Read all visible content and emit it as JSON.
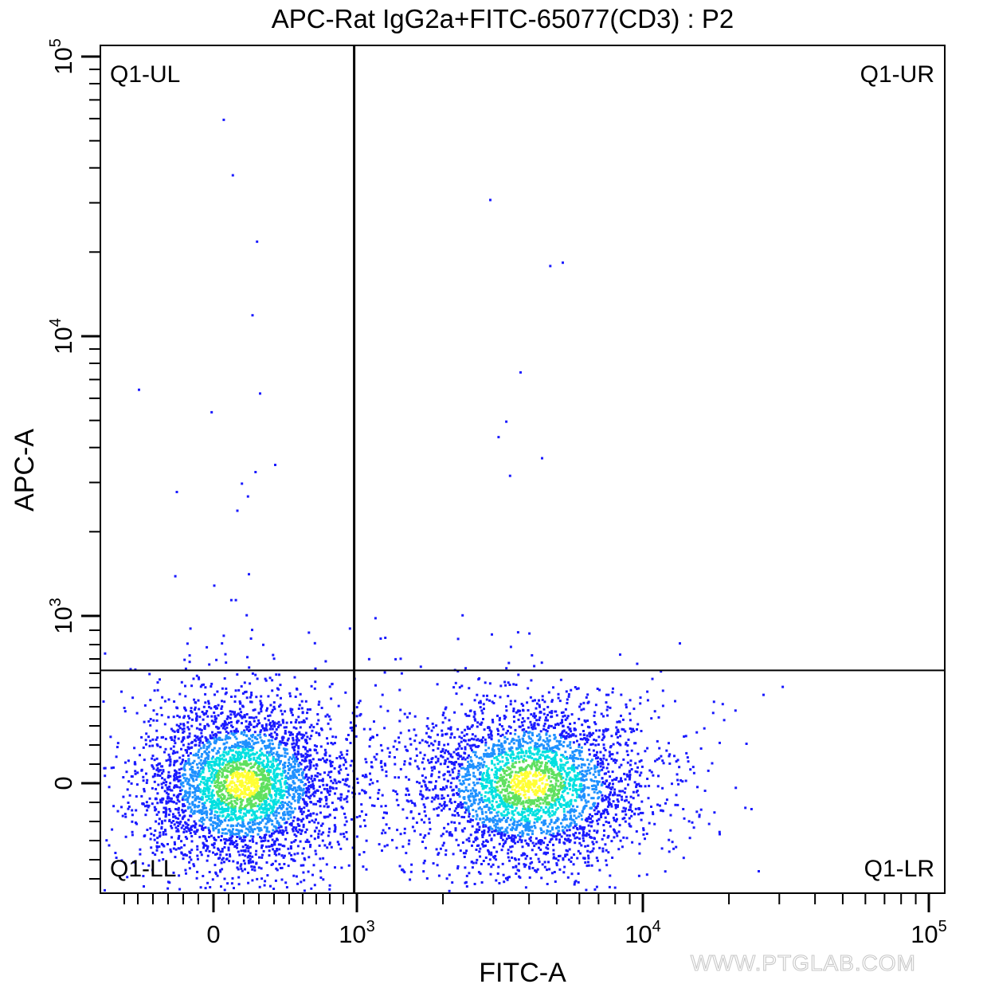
{
  "chart_data": {
    "type": "scatter",
    "subtype": "flow-cytometry density dot plot (biexponential axes)",
    "title": "APC-Rat IgG2a+FITC-65077(CD3) : P2",
    "xlabel": "FITC-A",
    "ylabel": "APC-A",
    "x_scale": "biexponential",
    "y_scale": "biexponential",
    "xlim": [
      -650,
      100000
    ],
    "ylim": [
      -600,
      100000
    ],
    "x_ticks": [
      {
        "base": "0",
        "exp": "",
        "value": 0
      },
      {
        "base": "10",
        "exp": "3",
        "value": 1000
      },
      {
        "base": "10",
        "exp": "4",
        "value": 10000
      },
      {
        "base": "10",
        "exp": "5",
        "value": 100000
      }
    ],
    "y_ticks": [
      {
        "base": "0",
        "exp": "",
        "value": 0
      },
      {
        "base": "10",
        "exp": "3",
        "value": 1000
      },
      {
        "base": "10",
        "exp": "4",
        "value": 10000
      },
      {
        "base": "10",
        "exp": "5",
        "value": 100000
      }
    ],
    "gates": {
      "x_divider": 980,
      "y_divider": 620
    },
    "quadrants": [
      {
        "label": "Q1-UL",
        "position": "top-left"
      },
      {
        "label": "Q1-UR",
        "position": "top-right"
      },
      {
        "label": "Q1-LL",
        "position": "bottom-left"
      },
      {
        "label": "Q1-LR",
        "position": "bottom-right"
      }
    ],
    "populations": [
      {
        "name": "",
        "center": [
          80,
          0
        ],
        "approx_events": 3600
      },
      {
        "name": "",
        "center": [
          4000,
          0
        ],
        "approx_events": 3300
      }
    ],
    "sparse_points": [
      [
        60,
        60000
      ],
      [
        120,
        38000
      ],
      [
        2900,
        31000
      ],
      [
        280,
        22000
      ],
      [
        250,
        12000
      ],
      [
        -500,
        6500
      ],
      [
        300,
        6300
      ],
      [
        -20,
        5400
      ],
      [
        3100,
        4400
      ],
      [
        400,
        3500
      ],
      [
        270,
        3300
      ],
      [
        180,
        3000
      ],
      [
        220,
        2700
      ],
      [
        -250,
        2800
      ],
      [
        150,
        2400
      ],
      [
        -260,
        1400
      ],
      [
        110,
        1150
      ],
      [
        140,
        1150
      ],
      [
        -160,
        920
      ],
      [
        60,
        870
      ],
      [
        240,
        850
      ],
      [
        940,
        920
      ],
      [
        1200,
        850
      ],
      [
        4700,
        18000
      ],
      [
        5200,
        18500
      ],
      [
        3700,
        7500
      ],
      [
        3300,
        5000
      ],
      [
        4400,
        3700
      ],
      [
        3400,
        3200
      ],
      [
        -190,
        640
      ]
    ],
    "density_colors": [
      "#1a1aff",
      "#1e90ff",
      "#00e0e0",
      "#5fe05f",
      "#ffff33"
    ],
    "grid": false,
    "legend": "none",
    "watermark": "WWW.PTGLAB.COM"
  }
}
